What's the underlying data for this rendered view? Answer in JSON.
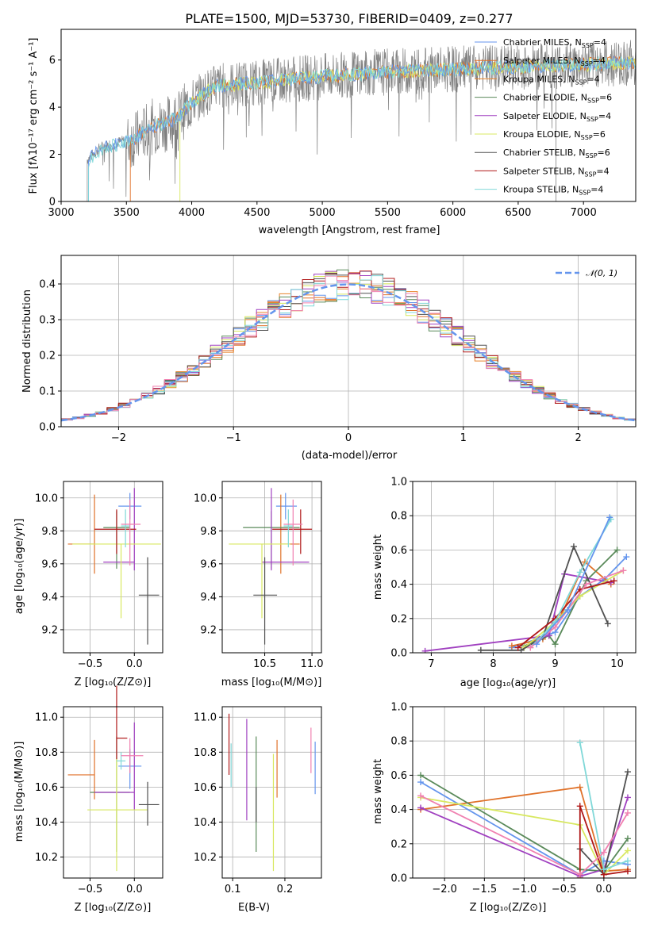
{
  "colors": [
    "#6495ed",
    "#e0722a",
    "#e8822a",
    "#5a8a5a",
    "#a040c0",
    "#d8e860",
    "#505050",
    "#b01818",
    "#80d8d8",
    "#f080b0"
  ],
  "chart_data": [
    {
      "id": "spectrum",
      "type": "line",
      "title": "PLATE=1500, MJD=53730, FIBERID=0409, z=0.277",
      "xlabel": "wavelength [Angstrom, rest frame]",
      "ylabel": "Flux [fλ10⁻¹⁷ erg cm⁻² s⁻¹ A⁻¹]",
      "xlim": [
        3000,
        7400
      ],
      "ylim": [
        0,
        7.3
      ],
      "xticks": [
        3000,
        3500,
        4000,
        4500,
        5000,
        5500,
        6000,
        6500,
        7000
      ],
      "yticks": [
        0,
        2,
        4,
        6
      ],
      "legend": [
        {
          "name": "Chabrier MILES, N",
          "sub": "SSP",
          "tail": "=4",
          "color": "#6495ed"
        },
        {
          "name": "Salpeter MILES, N",
          "sub": "SSP",
          "tail": "=4",
          "color": "#e0722a"
        },
        {
          "name": "Kroupa MILES, N",
          "sub": "SSP",
          "tail": "=4",
          "color": "#e8822a"
        },
        {
          "name": "Chabrier ELODIE, N",
          "sub": "SSP",
          "tail": "=6",
          "color": "#5a8a5a"
        },
        {
          "name": "Salpeter ELODIE, N",
          "sub": "SSP",
          "tail": "=4",
          "color": "#a040c0"
        },
        {
          "name": "Kroupa ELODIE, N",
          "sub": "SSP",
          "tail": "=6",
          "color": "#d8e860"
        },
        {
          "name": "Chabrier STELIB, N",
          "sub": "SSP",
          "tail": "=6",
          "color": "#505050"
        },
        {
          "name": "Salpeter STELIB, N",
          "sub": "SSP",
          "tail": "=4",
          "color": "#b01818"
        },
        {
          "name": "Kroupa STELIB, N",
          "sub": "SSP",
          "tail": "=4",
          "color": "#80d8d8"
        }
      ],
      "data_start": 3200,
      "model_starts": [
        {
          "color": "#e0722a",
          "x": 3530
        },
        {
          "color": "#d8e860",
          "x": 3910
        },
        {
          "color": "#6495ed",
          "x": 3210
        },
        {
          "color": "#80d8d8",
          "x": 3210
        }
      ],
      "envelope": [
        [
          3200,
          2.2
        ],
        [
          3300,
          2.7
        ],
        [
          3400,
          2.9
        ],
        [
          3500,
          3.0
        ],
        [
          3600,
          3.3
        ],
        [
          3700,
          3.7
        ],
        [
          3800,
          3.8
        ],
        [
          3900,
          4.1
        ],
        [
          4000,
          4.7
        ],
        [
          4100,
          5.1
        ],
        [
          4200,
          5.4
        ],
        [
          4400,
          5.5
        ],
        [
          4600,
          5.6
        ],
        [
          5000,
          5.8
        ],
        [
          5500,
          6.0
        ],
        [
          6000,
          6.1
        ],
        [
          6500,
          6.2
        ],
        [
          7000,
          6.3
        ],
        [
          7400,
          6.4
        ]
      ]
    },
    {
      "id": "residuals",
      "type": "line",
      "xlabel": "(data-model)/error",
      "ylabel": "Normed distribution",
      "xlim": [
        -2.5,
        2.5
      ],
      "ylim": [
        0,
        0.48
      ],
      "xticks": [
        -2,
        -1,
        0,
        1,
        2
      ],
      "yticks": [
        0.0,
        0.1,
        0.2,
        0.3,
        0.4
      ],
      "legend": [
        {
          "name": "𝒩(0, 1)",
          "color": "#6495ed"
        }
      ]
    },
    {
      "id": "age_vs_Z",
      "type": "scatter",
      "xlabel": "Z [log₁₀(Z/Z⊙)]",
      "ylabel": "age  [log₁₀(age/yr)]",
      "xlim": [
        -0.8,
        0.32
      ],
      "ylim": [
        9.06,
        10.1
      ],
      "xticks": [
        -0.5,
        0.0
      ],
      "yticks": [
        9.2,
        9.4,
        9.6,
        9.8,
        10.0
      ],
      "points": [
        {
          "x": -0.05,
          "y": 9.95,
          "xerr": [
            0.13,
            0.13
          ],
          "yerr": [
            0.08,
            0.08
          ],
          "color": "#6495ed"
        },
        {
          "x": -0.45,
          "y": 9.72,
          "xerr": [
            0.3,
            0.0
          ],
          "yerr": [
            0.18,
            0.3
          ],
          "color": "#e0722a"
        },
        {
          "x": -0.2,
          "y": 9.82,
          "xerr": [
            0.15,
            0.15
          ],
          "yerr": [
            0.25,
            0.1
          ],
          "color": "#5a8a5a"
        },
        {
          "x": 0.0,
          "y": 9.61,
          "xerr": [
            0.35,
            0.0
          ],
          "yerr": [
            0.05,
            0.45
          ],
          "color": "#a040c0"
        },
        {
          "x": -0.15,
          "y": 9.72,
          "xerr": [
            0.55,
            0.45
          ],
          "yerr": [
            0.45,
            0.0
          ],
          "color": "#d8e860"
        },
        {
          "x": 0.15,
          "y": 9.41,
          "xerr": [
            0.1,
            0.13
          ],
          "yerr": [
            0.3,
            0.23
          ],
          "color": "#505050"
        },
        {
          "x": -0.2,
          "y": 9.81,
          "xerr": [
            0.25,
            0.22
          ],
          "yerr": [
            0.15,
            0.12
          ],
          "color": "#b01818"
        },
        {
          "x": -0.1,
          "y": 9.83,
          "xerr": [
            0.05,
            0.05
          ],
          "yerr": [
            0.13,
            0.1
          ],
          "color": "#80d8d8"
        },
        {
          "x": -0.05,
          "y": 9.84,
          "xerr": [
            0.1,
            0.12
          ],
          "yerr": [
            0.25,
            0.15
          ],
          "color": "#f080b0"
        }
      ]
    },
    {
      "id": "age_vs_mass",
      "type": "scatter",
      "xlabel": "mass [log₁₀(M/M⊙)]",
      "ylabel": "",
      "xlim": [
        10.05,
        11.1
      ],
      "ylim": [
        9.06,
        10.1
      ],
      "xticks": [
        10.5,
        11.0
      ],
      "yticks": [
        9.2,
        9.4,
        9.6,
        9.8,
        10.0
      ],
      "points": [
        {
          "x": 10.72,
          "y": 9.95,
          "xerr": [
            0.1,
            0.12
          ],
          "yerr": [
            0.08,
            0.08
          ],
          "color": "#6495ed"
        },
        {
          "x": 10.67,
          "y": 9.72,
          "xerr": [
            0.0,
            0.2
          ],
          "yerr": [
            0.18,
            0.3
          ],
          "color": "#e0722a"
        },
        {
          "x": 10.57,
          "y": 9.82,
          "xerr": [
            0.3,
            0.3
          ],
          "yerr": [
            0.25,
            0.1
          ],
          "color": "#5a8a5a"
        },
        {
          "x": 10.57,
          "y": 9.61,
          "xerr": [
            0.1,
            0.4
          ],
          "yerr": [
            0.05,
            0.45
          ],
          "color": "#a040c0"
        },
        {
          "x": 10.47,
          "y": 9.72,
          "xerr": [
            0.35,
            0.3
          ],
          "yerr": [
            0.45,
            0.0
          ],
          "color": "#d8e860"
        },
        {
          "x": 10.5,
          "y": 9.41,
          "xerr": [
            0.12,
            0.13
          ],
          "yerr": [
            0.3,
            0.23
          ],
          "color": "#505050"
        },
        {
          "x": 10.88,
          "y": 9.81,
          "xerr": [
            0.3,
            0.12
          ],
          "yerr": [
            0.15,
            0.12
          ],
          "color": "#b01818"
        },
        {
          "x": 10.75,
          "y": 9.83,
          "xerr": [
            0.05,
            0.05
          ],
          "yerr": [
            0.13,
            0.1
          ],
          "color": "#80d8d8"
        },
        {
          "x": 10.8,
          "y": 9.84,
          "xerr": [
            0.1,
            0.1
          ],
          "yerr": [
            0.25,
            0.15
          ],
          "color": "#f080b0"
        }
      ]
    },
    {
      "id": "weight_vs_age",
      "type": "line",
      "xlabel": "age  [log₁₀(age/yr)]",
      "ylabel": "mass weight",
      "xlim": [
        6.7,
        10.3
      ],
      "ylim": [
        0,
        1.0
      ],
      "xticks": [
        7,
        8,
        9,
        10
      ],
      "yticks": [
        0.0,
        0.2,
        0.4,
        0.6,
        0.8,
        1.0
      ],
      "series": [
        {
          "color": "#6495ed",
          "x": [
            8.3,
            8.7,
            9.0,
            9.4,
            9.8,
            10.15
          ],
          "y": [
            0.03,
            0.08,
            0.12,
            0.33,
            0.43,
            0.56
          ]
        },
        {
          "color": "#e0722a",
          "x": [
            8.3,
            8.8,
            9.1,
            9.48,
            9.9
          ],
          "y": [
            0.04,
            0.08,
            0.22,
            0.53,
            0.4
          ]
        },
        {
          "color": "#5a8a5a",
          "x": [
            8.5,
            8.9,
            9.0,
            9.5,
            10.0
          ],
          "y": [
            0.04,
            0.1,
            0.05,
            0.42,
            0.6
          ]
        },
        {
          "color": "#a040c0",
          "x": [
            6.9,
            8.9,
            9.15,
            9.9
          ],
          "y": [
            0.01,
            0.1,
            0.46,
            0.41
          ]
        },
        {
          "color": "#d8e860",
          "x": [
            8.5,
            9.0,
            9.4,
            10.1
          ],
          "y": [
            0.03,
            0.18,
            0.33,
            0.48
          ]
        },
        {
          "color": "#505050",
          "x": [
            7.8,
            8.45,
            8.8,
            9.3,
            9.85
          ],
          "y": [
            0.015,
            0.015,
            0.09,
            0.62,
            0.17
          ]
        },
        {
          "color": "#b01818",
          "x": [
            8.4,
            9.0,
            9.4,
            9.95
          ],
          "y": [
            0.03,
            0.2,
            0.37,
            0.42
          ]
        },
        {
          "color": "#80d8d8",
          "x": [
            8.6,
            9.0,
            9.4,
            9.9
          ],
          "y": [
            0.03,
            0.18,
            0.47,
            0.78
          ]
        },
        {
          "color": "#f080b0",
          "x": [
            8.6,
            9.0,
            9.5,
            10.1
          ],
          "y": [
            0.03,
            0.15,
            0.4,
            0.48
          ]
        },
        {
          "color": "#6495ed",
          "x": [
            8.7,
            9.2,
            9.88
          ],
          "y": [
            0.05,
            0.25,
            0.79
          ]
        }
      ]
    },
    {
      "id": "mass_vs_Z",
      "type": "scatter",
      "xlabel": "Z [log₁₀(Z/Z⊙)]",
      "ylabel": "mass [log₁₀(M/M⊙)]",
      "xlim": [
        -0.8,
        0.32
      ],
      "ylim": [
        10.08,
        11.06
      ],
      "xticks": [
        -0.5,
        0.0
      ],
      "yticks": [
        10.2,
        10.4,
        10.6,
        10.8,
        11.0
      ],
      "points": [
        {
          "x": -0.05,
          "y": 10.72,
          "xerr": [
            0.13,
            0.13
          ],
          "yerr": [
            0.13,
            0.1
          ],
          "color": "#6495ed"
        },
        {
          "x": -0.45,
          "y": 10.67,
          "xerr": [
            0.3,
            0.0
          ],
          "yerr": [
            0.14,
            0.2
          ],
          "color": "#e0722a"
        },
        {
          "x": -0.2,
          "y": 10.57,
          "xerr": [
            0.3,
            0.15
          ],
          "yerr": [
            0.34,
            0.32
          ],
          "color": "#5a8a5a"
        },
        {
          "x": 0.0,
          "y": 10.57,
          "xerr": [
            0.45,
            0.0
          ],
          "yerr": [
            0.1,
            0.4
          ],
          "color": "#a040c0"
        },
        {
          "x": -0.2,
          "y": 10.47,
          "xerr": [
            0.33,
            0.35
          ],
          "yerr": [
            0.35,
            0.3
          ],
          "color": "#d8e860"
        },
        {
          "x": 0.15,
          "y": 10.5,
          "xerr": [
            0.1,
            0.13
          ],
          "yerr": [
            0.12,
            0.13
          ],
          "color": "#505050"
        },
        {
          "x": -0.2,
          "y": 10.88,
          "xerr": [
            0.0,
            0.12
          ],
          "yerr": [
            0.12,
            0.3
          ],
          "color": "#b01818"
        },
        {
          "x": -0.15,
          "y": 10.75,
          "xerr": [
            0.05,
            0.05
          ],
          "yerr": [
            0.05,
            0.05
          ],
          "color": "#80d8d8"
        },
        {
          "x": -0.05,
          "y": 10.78,
          "xerr": [
            0.1,
            0.15
          ],
          "yerr": [
            0.1,
            0.1
          ],
          "color": "#f080b0"
        }
      ]
    },
    {
      "id": "mass_vs_EBV",
      "type": "scatter",
      "xlabel": "E(B-V)",
      "ylabel": "",
      "xlim": [
        0.08,
        0.27
      ],
      "ylim": [
        10.08,
        11.06
      ],
      "xticks": [
        0.1,
        0.2
      ],
      "yticks": [
        10.2,
        10.4,
        10.6,
        10.8,
        11.0
      ],
      "points": [
        {
          "x": 0.258,
          "y": 10.72,
          "xerr": [
            0,
            0
          ],
          "yerr": [
            0.16,
            0.14
          ],
          "color": "#6495ed"
        },
        {
          "x": 0.185,
          "y": 10.67,
          "xerr": [
            0,
            0
          ],
          "yerr": [
            0.13,
            0.2
          ],
          "color": "#e0722a"
        },
        {
          "x": 0.145,
          "y": 10.57,
          "xerr": [
            0,
            0
          ],
          "yerr": [
            0.34,
            0.32
          ],
          "color": "#5a8a5a"
        },
        {
          "x": 0.127,
          "y": 10.57,
          "xerr": [
            0,
            0
          ],
          "yerr": [
            0.16,
            0.42
          ],
          "color": "#a040c0"
        },
        {
          "x": 0.178,
          "y": 10.47,
          "xerr": [
            0,
            0
          ],
          "yerr": [
            0.35,
            0.32
          ],
          "color": "#d8e860"
        },
        {
          "x": 0.145,
          "y": 10.5,
          "xerr": [
            0,
            0
          ],
          "yerr": [
            0.1,
            0.1
          ],
          "color": "#505050"
        },
        {
          "x": 0.093,
          "y": 10.88,
          "xerr": [
            0,
            0
          ],
          "yerr": [
            0.21,
            0.14
          ],
          "color": "#b01818"
        },
        {
          "x": 0.097,
          "y": 10.75,
          "xerr": [
            0,
            0
          ],
          "yerr": [
            0.15,
            0.1
          ],
          "color": "#80d8d8"
        },
        {
          "x": 0.25,
          "y": 10.78,
          "xerr": [
            0,
            0
          ],
          "yerr": [
            0.1,
            0.16
          ],
          "color": "#f080b0"
        }
      ]
    },
    {
      "id": "weight_vs_Z",
      "type": "line",
      "xlabel": "Z [log₁₀(Z/Z⊙)]",
      "ylabel": "mass weight",
      "xlim": [
        -2.4,
        0.4
      ],
      "ylim": [
        0,
        1.0
      ],
      "xticks": [
        -2.0,
        -1.5,
        -1.0,
        -0.5,
        0.0
      ],
      "yticks": [
        0.0,
        0.2,
        0.4,
        0.6,
        0.8,
        1.0
      ],
      "series": [
        {
          "color": "#6495ed",
          "x": [
            -2.3,
            -0.3,
            0.0,
            0.3
          ],
          "y": [
            0.56,
            0.02,
            0.1,
            0.08
          ]
        },
        {
          "color": "#e0722a",
          "x": [
            -2.3,
            -0.3,
            0.0,
            0.3
          ],
          "y": [
            0.4,
            0.53,
            0.04,
            0.05
          ]
        },
        {
          "color": "#5a8a5a",
          "x": [
            -2.3,
            -0.3,
            0.0,
            0.3
          ],
          "y": [
            0.6,
            0.05,
            0.04,
            0.23
          ]
        },
        {
          "color": "#a040c0",
          "x": [
            -2.3,
            -0.3,
            0.0,
            0.3
          ],
          "y": [
            0.41,
            0.01,
            0.05,
            0.47
          ]
        },
        {
          "color": "#d8e860",
          "x": [
            -2.3,
            -0.3,
            0.0,
            0.3
          ],
          "y": [
            0.47,
            0.31,
            0.02,
            0.16
          ]
        },
        {
          "color": "#505050",
          "x": [
            -0.3,
            0.0,
            0.3
          ],
          "y": [
            0.17,
            0.02,
            0.62
          ]
        },
        {
          "color": "#b01818",
          "x": [
            -0.3,
            -0.3,
            0.0,
            0.3
          ],
          "y": [
            0.0,
            0.42,
            0.02,
            0.04
          ]
        },
        {
          "color": "#80d8d8",
          "x": [
            -0.3,
            0.0,
            0.3
          ],
          "y": [
            0.79,
            0.05,
            0.1
          ]
        },
        {
          "color": "#f080b0",
          "x": [
            -2.3,
            -0.3,
            0.0,
            0.3
          ],
          "y": [
            0.48,
            0.02,
            0.15,
            0.38
          ]
        }
      ]
    }
  ]
}
